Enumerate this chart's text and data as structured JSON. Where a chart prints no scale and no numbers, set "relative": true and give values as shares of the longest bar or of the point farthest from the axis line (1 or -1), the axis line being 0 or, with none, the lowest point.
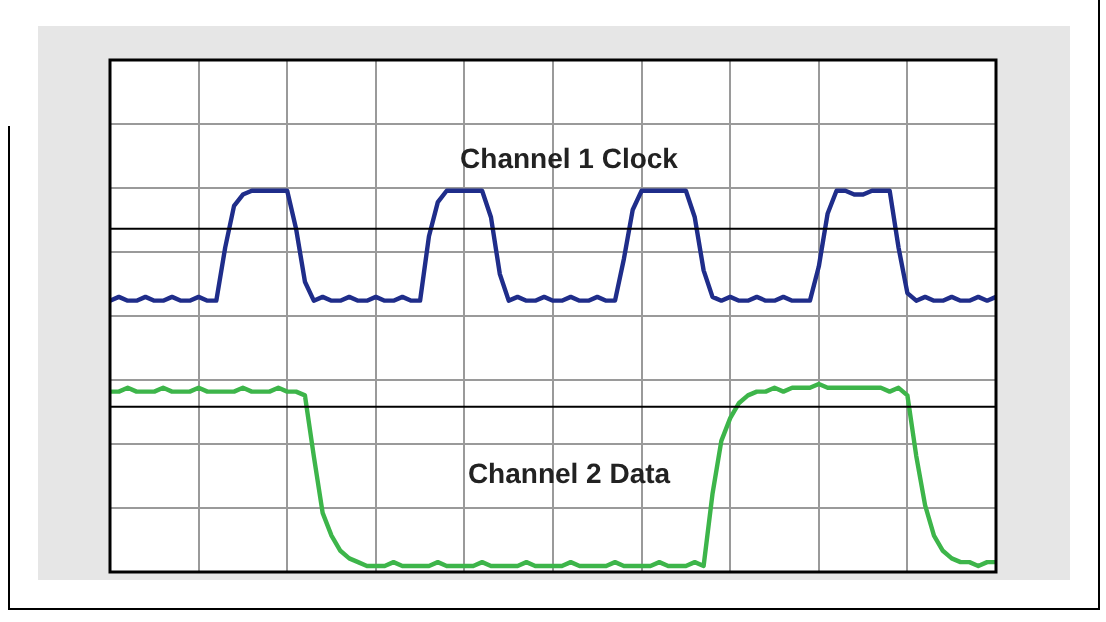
{
  "chart_data": {
    "type": "line",
    "relative": true,
    "grid": true,
    "legend": false,
    "tick_labels": false,
    "marker": "none",
    "categories": [
      null,
      null,
      null,
      null,
      null,
      null,
      null,
      null,
      null,
      null,
      null,
      null,
      null,
      null,
      null,
      null,
      null,
      null,
      null,
      null,
      null,
      null,
      null,
      null,
      null,
      null,
      null,
      null,
      null,
      null,
      null,
      null,
      null,
      null,
      null,
      null,
      null,
      null,
      null,
      null,
      null,
      null,
      null,
      null,
      null,
      null,
      null,
      null,
      null,
      null,
      null,
      null,
      null,
      null,
      null,
      null,
      null,
      null,
      null,
      null,
      null,
      null,
      null,
      null,
      null,
      null,
      null,
      null,
      null,
      null,
      null,
      null,
      null,
      null,
      null,
      null,
      null,
      null,
      null,
      null,
      null,
      null,
      null,
      null,
      null,
      null,
      null,
      null,
      null,
      null,
      null,
      null,
      null,
      null,
      null,
      null,
      null,
      null,
      null,
      null,
      null
    ],
    "series": [
      {
        "name": "Channel 1 Clock",
        "color": "#1f2d8a",
        "values": [
          0.71,
          0.72,
          0.71,
          0.71,
          0.72,
          0.71,
          0.71,
          0.72,
          0.71,
          0.71,
          0.72,
          0.71,
          0.71,
          0.85,
          0.96,
          0.99,
          1,
          1,
          1,
          1,
          1,
          0.9,
          0.76,
          0.71,
          0.72,
          0.71,
          0.71,
          0.72,
          0.71,
          0.71,
          0.72,
          0.71,
          0.71,
          0.72,
          0.71,
          0.71,
          0.88,
          0.97,
          1,
          1,
          1,
          1,
          1,
          0.93,
          0.78,
          0.71,
          0.72,
          0.71,
          0.71,
          0.72,
          0.71,
          0.71,
          0.72,
          0.71,
          0.71,
          0.72,
          0.71,
          0.71,
          0.82,
          0.95,
          1,
          1,
          1,
          1,
          1,
          1,
          0.93,
          0.79,
          0.72,
          0.71,
          0.72,
          0.71,
          0.71,
          0.72,
          0.71,
          0.71,
          0.72,
          0.71,
          0.71,
          0.71,
          0.8,
          0.94,
          1,
          1,
          0.99,
          0.99,
          1,
          1,
          1,
          0.85,
          0.73,
          0.71,
          0.72,
          0.71,
          0.71,
          0.72,
          0.71,
          0.71,
          0.72,
          0.71,
          0.72
        ]
      },
      {
        "name": "Channel 2 Data",
        "color": "#3db54a",
        "values": [
          0.47,
          0.47,
          0.48,
          0.47,
          0.47,
          0.47,
          0.48,
          0.47,
          0.47,
          0.47,
          0.48,
          0.47,
          0.47,
          0.47,
          0.47,
          0.48,
          0.47,
          0.47,
          0.47,
          0.48,
          0.47,
          0.47,
          0.46,
          0.3,
          0.15,
          0.09,
          0.05,
          0.03,
          0.02,
          0.01,
          0.01,
          0.01,
          0.02,
          0.01,
          0.01,
          0.01,
          0.01,
          0.02,
          0.01,
          0.01,
          0.01,
          0.01,
          0.02,
          0.01,
          0.01,
          0.01,
          0.01,
          0.02,
          0.01,
          0.01,
          0.01,
          0.01,
          0.02,
          0.01,
          0.01,
          0.01,
          0.01,
          0.02,
          0.01,
          0.01,
          0.01,
          0.01,
          0.02,
          0.01,
          0.01,
          0.01,
          0.02,
          0.01,
          0.2,
          0.34,
          0.4,
          0.44,
          0.46,
          0.47,
          0.47,
          0.48,
          0.47,
          0.48,
          0.48,
          0.48,
          0.49,
          0.48,
          0.48,
          0.48,
          0.48,
          0.48,
          0.48,
          0.48,
          0.47,
          0.48,
          0.46,
          0.3,
          0.17,
          0.09,
          0.05,
          0.03,
          0.02,
          0.02,
          0.01,
          0.02,
          0.02
        ]
      }
    ],
    "ref_lines": [
      {
        "axis": "y",
        "value": 0.9,
        "color": "#000000"
      },
      {
        "axis": "y",
        "value": 0.43,
        "color": "#000000"
      }
    ]
  }
}
